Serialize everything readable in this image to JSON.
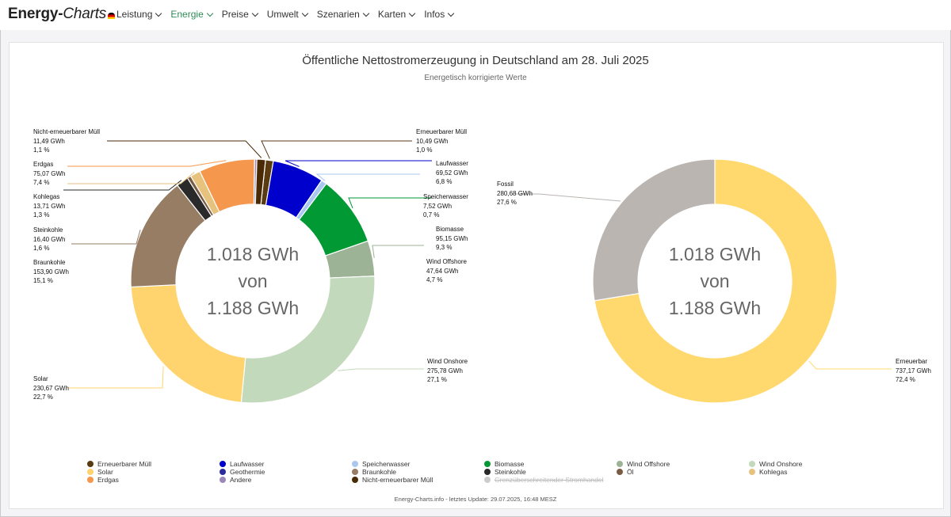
{
  "header": {
    "logo_bold": "Energy-",
    "logo_italic": "Charts",
    "nav": [
      "Leistung",
      "Energie",
      "Preise",
      "Umwelt",
      "Szenarien",
      "Karten",
      "Infos"
    ],
    "active_nav": "Energie"
  },
  "chart_data": [
    {
      "type": "pie",
      "title": "Öffentliche Nettostromerzeugung in Deutschland am 28. Juli 2025",
      "subtitle": "Energetisch korrigierte Werte",
      "center_lines": [
        "1.018 GWh",
        "von",
        "1.188 GWh"
      ],
      "slices": [
        {
          "name": "Erneuerbarer Müll",
          "value": 10.49,
          "percent": 1.0,
          "value_label": "10,49 GWh",
          "percent_label": "1,0 %",
          "color": "#5a3a10"
        },
        {
          "name": "Laufwasser",
          "value": 69.52,
          "percent": 6.8,
          "value_label": "69,52 GWh",
          "percent_label": "6,8 %",
          "color": "#0000cc"
        },
        {
          "name": "Speicherwasser",
          "value": 7.52,
          "percent": 0.7,
          "value_label": "7,52 GWh",
          "percent_label": "0,7 %",
          "color": "#a9c7f0"
        },
        {
          "name": "Biomasse",
          "value": 95.15,
          "percent": 9.3,
          "value_label": "95,15 GWh",
          "percent_label": "9,3 %",
          "color": "#009933"
        },
        {
          "name": "Wind Offshore",
          "value": 47.64,
          "percent": 4.7,
          "value_label": "47,64 GWh",
          "percent_label": "4,7 %",
          "color": "#9cb395"
        },
        {
          "name": "Wind Onshore",
          "value": 275.78,
          "percent": 27.1,
          "value_label": "275,78 GWh",
          "percent_label": "27,1 %",
          "color": "#c3d9bb"
        },
        {
          "name": "Solar",
          "value": 230.67,
          "percent": 22.7,
          "value_label": "230,67 GWh",
          "percent_label": "22,7 %",
          "color": "#ffd36e"
        },
        {
          "name": "Braunkohle",
          "value": 153.9,
          "percent": 15.1,
          "value_label": "153,90 GWh",
          "percent_label": "15,1 %",
          "color": "#967d63"
        },
        {
          "name": "Steinkohle",
          "value": 16.4,
          "percent": 1.6,
          "value_label": "16,40 GWh",
          "percent_label": "1,6 %",
          "color": "#2a2a2a"
        },
        {
          "name": "Öl",
          "value": 5.0,
          "percent": 0.5,
          "color": "#7a5c45"
        },
        {
          "name": "Kohlegas",
          "value": 13.71,
          "percent": 1.3,
          "value_label": "13,71 GWh",
          "percent_label": "1,3 %",
          "color": "#e6c27d"
        },
        {
          "name": "Erdgas",
          "value": 75.07,
          "percent": 7.4,
          "value_label": "75,07 GWh",
          "percent_label": "7,4 %",
          "color": "#f5984e"
        },
        {
          "name": "Andere",
          "value": 3.0,
          "percent": 0.3,
          "color": "#9b88b8"
        },
        {
          "name": "Nicht-erneuerbarer Müll",
          "value": 11.49,
          "percent": 1.1,
          "value_label": "11,49 GWh",
          "percent_label": "1,1 %",
          "color": "#4a2a05"
        }
      ]
    },
    {
      "type": "pie",
      "center_lines": [
        "1.018 GWh",
        "von",
        "1.188 GWh"
      ],
      "slices": [
        {
          "name": "Erneuerbar",
          "value": 737.17,
          "percent": 72.4,
          "value_label": "737,17 GWh",
          "percent_label": "72,4 %",
          "color": "#ffd96e"
        },
        {
          "name": "Fossil",
          "value": 280.68,
          "percent": 27.6,
          "value_label": "280,68 GWh",
          "percent_label": "27,6 %",
          "color": "#bab5b1"
        }
      ]
    }
  ],
  "legend": [
    {
      "name": "Erneuerbarer Müll",
      "color": "#5a3a10"
    },
    {
      "name": "Laufwasser",
      "color": "#0000cc"
    },
    {
      "name": "Speicherwasser",
      "color": "#a9c7f0"
    },
    {
      "name": "Biomasse",
      "color": "#009933"
    },
    {
      "name": "Wind Offshore",
      "color": "#9cb395"
    },
    {
      "name": "Wind Onshore",
      "color": "#c3d9bb"
    },
    {
      "name": "Solar",
      "color": "#ffd36e"
    },
    {
      "name": "Geothermie",
      "color": "#2b2b9e"
    },
    {
      "name": "Braunkohle",
      "color": "#967d63"
    },
    {
      "name": "Steinkohle",
      "color": "#2a2a2a"
    },
    {
      "name": "Öl",
      "color": "#7a5c45"
    },
    {
      "name": "Kohlegas",
      "color": "#e6c27d"
    },
    {
      "name": "Erdgas",
      "color": "#f5984e"
    },
    {
      "name": "Andere",
      "color": "#9b88b8"
    },
    {
      "name": "Nicht-erneuerbarer Müll",
      "color": "#4a2a05"
    },
    {
      "name": "Grenzüberschreitender Stromhandel",
      "color": "#cccccc",
      "hidden": true
    }
  ],
  "footer": "Energy-Charts.info - letztes Update: 29.07.2025, 16:48 MESZ"
}
